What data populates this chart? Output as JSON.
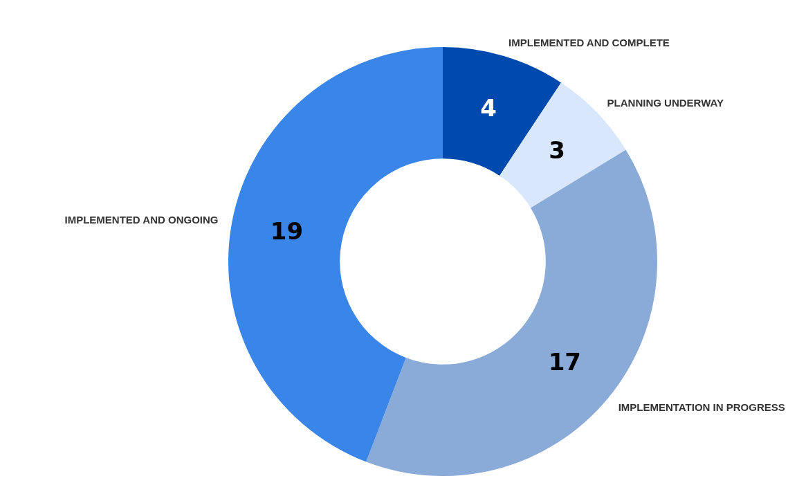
{
  "chart_data": {
    "type": "donut",
    "categories": [
      "IMPLEMENTED AND COMPLETE",
      "PLANNING UNDERWAY",
      "IMPLEMENTATION IN PROGRESS",
      "IMPLEMENTED AND ONGOING"
    ],
    "values": [
      4,
      3,
      17,
      19
    ],
    "colors": [
      "#004aad",
      "#d9e7fc",
      "#8aaad8",
      "#3a85e8"
    ],
    "data_labels": true
  }
}
